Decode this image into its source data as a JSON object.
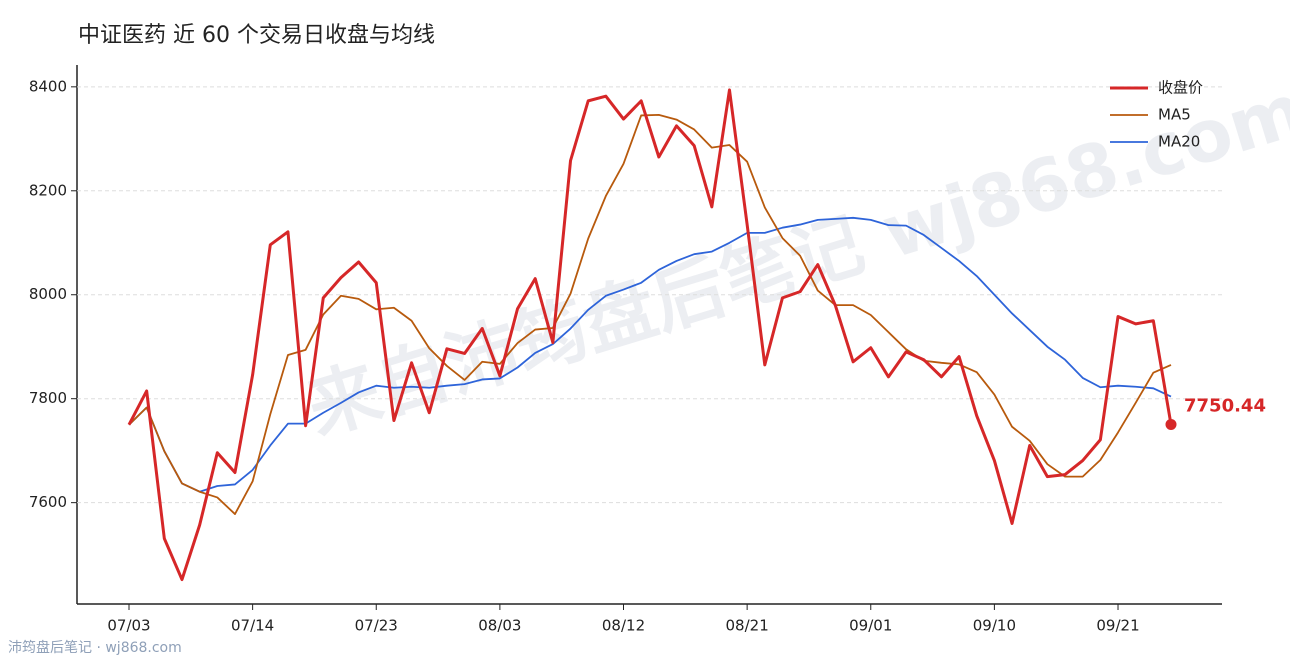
{
  "chart_data": {
    "type": "line",
    "title": "中证医药 近 60 个交易日收盘与均线",
    "categories": [
      "07/03",
      null,
      null,
      null,
      null,
      null,
      null,
      "07/14",
      null,
      null,
      null,
      null,
      null,
      null,
      "07/23",
      null,
      null,
      null,
      null,
      null,
      null,
      "08/03",
      null,
      null,
      null,
      null,
      null,
      null,
      "08/12",
      null,
      null,
      null,
      null,
      null,
      null,
      "08/21",
      null,
      null,
      null,
      null,
      null,
      null,
      "09/01",
      null,
      null,
      null,
      null,
      null,
      null,
      "09/10",
      null,
      null,
      null,
      null,
      null,
      null,
      "09/21",
      null,
      null,
      null
    ],
    "series": [
      {
        "name": "收盘价",
        "color": "#d62728",
        "width": 3,
        "values": [
          7750,
          7815,
          7531,
          7452,
          7557,
          7696,
          7658,
          7846,
          8096,
          8121,
          7748,
          7994,
          8033,
          8063,
          8023,
          7758,
          7869,
          7773,
          7896,
          7887,
          7935,
          7844,
          7973,
          8031,
          7908,
          8258,
          8373,
          8382,
          8338,
          8373,
          8265,
          8325,
          8287,
          8169,
          8394,
          8135,
          7865,
          7994,
          8006,
          8058,
          7979,
          7871,
          7898,
          7842,
          7890,
          7875,
          7842,
          7881,
          7767,
          7681,
          7560,
          7710,
          7650,
          7654,
          7681,
          7721,
          7958,
          7944,
          7950,
          7750.44
        ]
      },
      {
        "name": "MA5",
        "color": "#b85a0d",
        "width": 1.8,
        "values": [
          7750,
          7783,
          7699,
          7637,
          7621,
          7610,
          7578,
          7641,
          7770,
          7884,
          7894,
          7962,
          7998,
          7992,
          7972,
          7975,
          7950,
          7897,
          7863,
          7836,
          7871,
          7867,
          7907,
          7933,
          7936,
          8002,
          8108,
          8190,
          8252,
          8345,
          8346,
          8337,
          8318,
          8283,
          8288,
          8256,
          8168,
          8109,
          8075,
          8008,
          7980,
          7980,
          7961,
          7928,
          7895,
          7873,
          7869,
          7866,
          7851,
          7808,
          7746,
          7719,
          7674,
          7650,
          7650,
          7682,
          7735,
          7792,
          7850,
          7865
        ]
      },
      {
        "name": "MA20",
        "color": "#2e64d9",
        "width": 1.8,
        "values": [
          7750,
          7783,
          7699,
          7637,
          7621,
          7632,
          7635,
          7663,
          7710,
          7752,
          7752,
          7773,
          7792,
          7812,
          7825,
          7821,
          7823,
          7821,
          7825,
          7828,
          7837,
          7839,
          7860,
          7888,
          7905,
          7935,
          7971,
          7998,
          8010,
          8023,
          8048,
          8065,
          8078,
          8083,
          8100,
          8119,
          8119,
          8129,
          8135,
          8144,
          8146,
          8148,
          8144,
          8134,
          8133,
          8115,
          8090,
          8065,
          8036,
          8000,
          7964,
          7932,
          7900,
          7875,
          7840,
          7822,
          7825,
          7823,
          7820,
          7804
        ]
      }
    ],
    "end_label": "7750.44",
    "ylim": [
      7405,
      8442
    ],
    "yticks": [
      7600,
      7800,
      8000,
      8200,
      8400
    ],
    "grid": true,
    "legend": "upper right",
    "watermark": "来自沛筠盘后笔记 wj868.com",
    "footer": "沛筠盘后笔记 · wj868.com"
  }
}
